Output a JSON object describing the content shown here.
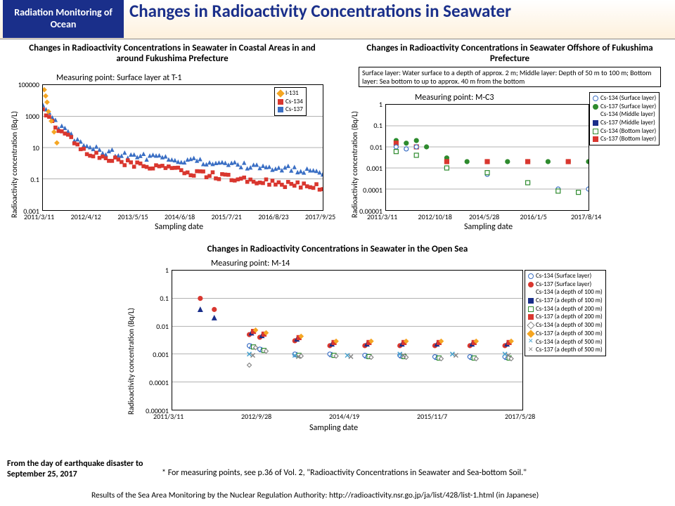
{
  "header": {
    "badge": "Radiation Monitoring  of Ocean",
    "title": "Changes in Radioactivity Concentrations in Seawater"
  },
  "chart1": {
    "title": "Changes in Radioactivity Concentrations in Seawater in Coastal Areas in and around Fukushima Prefecture",
    "measuring": "Measuring point: Surface layer at T-1",
    "ylabel": "Radioactivity concentration (Bq/L)",
    "xlabel": "Sampling date",
    "type": "scatter",
    "xlim": [
      "2011/3/11",
      "2017/9/25"
    ],
    "xticks": [
      "2011/3/11",
      "2012/4/12",
      "2013/5/15",
      "2014/6/18",
      "2015/7/21",
      "2016/8/23",
      "2017/9/25"
    ],
    "ylim": [
      0.001,
      100000
    ],
    "yticks": [
      "0.001",
      "0.1",
      "10",
      "1000",
      "100000"
    ],
    "yscale": "log",
    "grid_color": "#666666",
    "background_color": "#ffffff",
    "series": [
      {
        "name": "I-131",
        "color": "#f5a623",
        "marker": "diamond"
      },
      {
        "name": "Cs-134",
        "color": "#d9372f",
        "marker": "square"
      },
      {
        "name": "Cs-137",
        "color": "#3b6fc4",
        "marker": "triangle"
      }
    ],
    "data_approx": {
      "i131_xrange": [
        0,
        0.05
      ],
      "i131_y": [
        50000,
        10
      ],
      "cs134_band": [
        [
          0,
          3000
        ],
        [
          0.05,
          200
        ],
        [
          0.15,
          5
        ],
        [
          0.3,
          1
        ],
        [
          0.5,
          0.3
        ],
        [
          0.7,
          0.1
        ],
        [
          0.9,
          0.04
        ],
        [
          1.0,
          0.03
        ]
      ],
      "cs137_band": [
        [
          0,
          5000
        ],
        [
          0.05,
          300
        ],
        [
          0.15,
          10
        ],
        [
          0.3,
          3
        ],
        [
          0.5,
          1.5
        ],
        [
          0.7,
          0.8
        ],
        [
          0.9,
          0.4
        ],
        [
          1.0,
          0.2
        ]
      ]
    }
  },
  "chart2": {
    "title": "Changes in Radioactivity Concentrations in Seawater Offshore of Fukushima Prefecture",
    "layer_note": "Surface layer: Water surface to a depth of approx. 2 m; Middle layer: Depth of 50 m to 100 m; Bottom layer: Sea bottom to up to approx. 40 m from the bottom",
    "measuring": "Measuring point: M-C3",
    "ylabel": "Radioactivity concentration (Bq/L)",
    "xlabel": "Sampling date",
    "type": "scatter",
    "xlim": [
      "2011/3/11",
      "2017/8/14"
    ],
    "xticks": [
      "2011/3/11",
      "2012/10/18",
      "2014/5/28",
      "2016/1/5",
      "2017/8/14"
    ],
    "ylim": [
      1e-05,
      1
    ],
    "yticks": [
      "0.00001",
      "0.0001",
      "0.001",
      "0.01",
      "0.1",
      "1"
    ],
    "yscale": "log",
    "grid_color": "#666666",
    "background_color": "#ffffff",
    "series": [
      {
        "name": "Cs-134 (Surface layer)",
        "color": "#3b6fc4",
        "marker": "circle",
        "fill": false
      },
      {
        "name": "Cs-137 (Surface layer)",
        "color": "#2e8b2e",
        "marker": "circle",
        "fill": true
      },
      {
        "name": "Cs-134 (Middle layer)",
        "color": "#3b6fc4",
        "marker": "triangle",
        "fill": false
      },
      {
        "name": "Cs-137 (Middle layer)",
        "color": "#1a2f8a",
        "marker": "triangle",
        "fill": true
      },
      {
        "name": "Cs-134 (Bottom layer)",
        "color": "#2e8b2e",
        "marker": "square",
        "fill": false
      },
      {
        "name": "Cs-137 (Bottom layer)",
        "color": "#d9372f",
        "marker": "square",
        "fill": true
      }
    ],
    "data_approx": {
      "surface137": [
        [
          0.05,
          0.02
        ],
        [
          0.1,
          0.015
        ],
        [
          0.15,
          0.02
        ],
        [
          0.2,
          0.01
        ],
        [
          0.3,
          0.003
        ],
        [
          0.4,
          0.002
        ],
        [
          0.5,
          0.002
        ],
        [
          0.6,
          0.002
        ],
        [
          0.7,
          0.002
        ],
        [
          0.8,
          0.002
        ],
        [
          0.9,
          0.002
        ],
        [
          1.0,
          0.002
        ]
      ],
      "surface134": [
        [
          0.05,
          0.01
        ],
        [
          0.1,
          0.008
        ],
        [
          0.15,
          0.01
        ],
        [
          0.3,
          0.001
        ],
        [
          0.5,
          0.0005
        ],
        [
          0.7,
          0.0002
        ],
        [
          0.85,
          0.0001
        ],
        [
          1.0,
          0.0001
        ]
      ],
      "bottom137": [
        [
          0.05,
          0.015
        ],
        [
          0.15,
          0.01
        ],
        [
          0.3,
          0.002
        ],
        [
          0.5,
          0.002
        ],
        [
          0.7,
          0.002
        ],
        [
          0.9,
          0.002
        ]
      ],
      "bottom134": [
        [
          0.05,
          0.006
        ],
        [
          0.15,
          0.004
        ],
        [
          0.3,
          0.001
        ],
        [
          0.5,
          0.0006
        ],
        [
          0.7,
          0.0002
        ],
        [
          0.85,
          8e-05
        ],
        [
          0.95,
          7e-05
        ]
      ]
    }
  },
  "chart3": {
    "title": "Changes in Radioactivity Concentrations in Seawater in the Open Sea",
    "measuring": "Measuring point: M-14",
    "ylabel": "Radioactivity concentration (Bq/L)",
    "xlabel": "Sampling date",
    "type": "scatter",
    "xlim": [
      "2011/3/11",
      "2017/5/28"
    ],
    "xticks": [
      "2011/3/11",
      "2012/9/28",
      "2014/4/19",
      "2015/11/7",
      "2017/5/28"
    ],
    "ylim": [
      1e-05,
      1
    ],
    "yticks": [
      "0.00001",
      "0.0001",
      "0.001",
      "0.01",
      "0.1",
      "1"
    ],
    "yscale": "log",
    "grid_color": "#666666",
    "background_color": "#ffffff",
    "series": [
      {
        "name": "Cs-134 (Surface layer)",
        "color": "#3b6fc4",
        "marker": "circle",
        "fill": false
      },
      {
        "name": "Cs-137 (Surface layer)",
        "color": "#d9372f",
        "marker": "circle",
        "fill": true
      },
      {
        "name": "Cs-134 (a depth of 100 m)",
        "color": "#3b6fc4",
        "marker": "triangle",
        "fill": false
      },
      {
        "name": "Cs-137 (a depth of 100 m)",
        "color": "#1a2f8a",
        "marker": "triangle",
        "fill": true
      },
      {
        "name": "Cs-134 (a depth of 200 m)",
        "color": "#2e8b2e",
        "marker": "square",
        "fill": false
      },
      {
        "name": "Cs-137 (a depth of 200 m)",
        "color": "#d9372f",
        "marker": "square",
        "fill": true
      },
      {
        "name": "Cs-134 (a depth of 300 m)",
        "color": "#888888",
        "marker": "diamond",
        "fill": false
      },
      {
        "name": "Cs-137 (a depth of 300 m)",
        "color": "#f5a623",
        "marker": "diamond",
        "fill": true
      },
      {
        "name": "Cs-134 (a depth of 500 m)",
        "color": "#4aa4d0",
        "marker": "x",
        "fill": false
      },
      {
        "name": "Cs-137 (a depth of 500 m)",
        "color": "#888888",
        "marker": "x",
        "fill": false
      }
    ],
    "data_approx": {
      "early_high": [
        [
          0.08,
          0.1
        ],
        [
          0.12,
          0.04
        ]
      ],
      "tri_100": [
        [
          0.08,
          0.04
        ],
        [
          0.12,
          0.02
        ]
      ],
      "cs137_cluster": [
        [
          0.22,
          0.005
        ],
        [
          0.25,
          0.004
        ],
        [
          0.35,
          0.003
        ],
        [
          0.45,
          0.002
        ],
        [
          0.55,
          0.002
        ],
        [
          0.65,
          0.002
        ],
        [
          0.75,
          0.002
        ],
        [
          0.85,
          0.002
        ],
        [
          0.95,
          0.002
        ]
      ],
      "cs134_cluster": [
        [
          0.22,
          0.002
        ],
        [
          0.25,
          0.0015
        ],
        [
          0.35,
          0.001
        ],
        [
          0.45,
          0.001
        ],
        [
          0.55,
          0.0009
        ],
        [
          0.65,
          0.0009
        ],
        [
          0.75,
          0.0008
        ],
        [
          0.85,
          0.0008
        ],
        [
          0.95,
          0.0008
        ]
      ],
      "x500": [
        [
          0.22,
          0.001
        ],
        [
          0.35,
          0.0009
        ],
        [
          0.5,
          0.0009
        ],
        [
          0.65,
          0.001
        ],
        [
          0.8,
          0.001
        ],
        [
          0.95,
          0.001
        ]
      ],
      "diamond300_open": [
        [
          0.22,
          0.0004
        ]
      ]
    }
  },
  "footer": {
    "left": "From the day of earthquake disaster to September 25, 2017",
    "note": "* For measuring points, see p.36 of Vol. 2, \"Radioactivity Concentrations in Seawater and Sea-bottom Soil.\"",
    "src": "Results of the Sea Area Monitoring by the Nuclear Regulation Authority:  http://radioactivity.nsr.go.jp/ja/list/428/list-1.html  (in Japanese)"
  }
}
